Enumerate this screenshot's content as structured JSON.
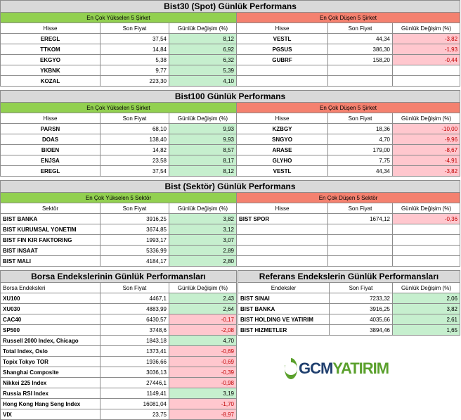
{
  "bist30": {
    "title": "Bist30 (Spot) Günlük Performans",
    "gainers_header": "En Çok Yükselen 5 Şirket",
    "losers_header": "En Çok Düşen 5 Şirket",
    "col_stock": "Hisse",
    "col_price": "Son Fiyat",
    "col_change": "Günlük Değişim (%)",
    "gainers": [
      {
        "name": "EREGL",
        "price": "37,54",
        "change": "8,12"
      },
      {
        "name": "TTKOM",
        "price": "14,84",
        "change": "6,92"
      },
      {
        "name": "EKGYO",
        "price": "5,38",
        "change": "6,32"
      },
      {
        "name": "YKBNK",
        "price": "9,77",
        "change": "5,39"
      },
      {
        "name": "KOZAL",
        "price": "223,30",
        "change": "4,10"
      }
    ],
    "losers": [
      {
        "name": "VESTL",
        "price": "44,34",
        "change": "-3,82"
      },
      {
        "name": "PGSUS",
        "price": "386,30",
        "change": "-1,93"
      },
      {
        "name": "GUBRF",
        "price": "158,20",
        "change": "-0,44"
      }
    ]
  },
  "bist100": {
    "title": "Bist100 Günlük Performans",
    "gainers_header": "En Çok Yükselen 5 Şirket",
    "losers_header": "En Çok Düşen 5 Şirket",
    "col_stock": "Hisse",
    "col_price": "Son Fiyat",
    "col_change": "Günlük Değişim (%)",
    "gainers": [
      {
        "name": "PARSN",
        "price": "68,10",
        "change": "9,93"
      },
      {
        "name": "DOAS",
        "price": "138,40",
        "change": "9,93"
      },
      {
        "name": "BIOEN",
        "price": "14,82",
        "change": "8,57"
      },
      {
        "name": "ENJSA",
        "price": "23,58",
        "change": "8,17"
      },
      {
        "name": "EREGL",
        "price": "37,54",
        "change": "8,12"
      }
    ],
    "losers": [
      {
        "name": "KZBGY",
        "price": "18,36",
        "change": "-10,00"
      },
      {
        "name": "SNGYO",
        "price": "4,70",
        "change": "-9,96"
      },
      {
        "name": "ARASE",
        "price": "179,00",
        "change": "-8,67"
      },
      {
        "name": "GLYHO",
        "price": "7,75",
        "change": "-4,91"
      },
      {
        "name": "VESTL",
        "price": "44,34",
        "change": "-3,82"
      }
    ]
  },
  "sector": {
    "title": "Bist (Sektör) Günlük Performans",
    "gainers_header": "En Çok Yükselen 5 Sektör",
    "losers_header": "En Çok Düşen 5 Sektör",
    "col_sector": "Sektör",
    "col_stock": "Hisse",
    "col_price": "Son Fiyat",
    "col_change": "Günlük Değişim (%)",
    "gainers": [
      {
        "name": "BIST BANKA",
        "price": "3916,25",
        "change": "3,82"
      },
      {
        "name": "BIST KURUMSAL YONETIM",
        "price": "3674,85",
        "change": "3,12"
      },
      {
        "name": "BIST FIN KIR FAKTORING",
        "price": "1993,17",
        "change": "3,07"
      },
      {
        "name": "BIST INSAAT",
        "price": "5336,99",
        "change": "2,89"
      },
      {
        "name": "BIST MALI",
        "price": "4184,17",
        "change": "2,80"
      }
    ],
    "losers": [
      {
        "name": "BIST SPOR",
        "price": "1674,12",
        "change": "-0,36"
      }
    ]
  },
  "borsa": {
    "title": "Borsa Endekslerinin Günlük Performansları",
    "col_index": "Borsa Endeksleri",
    "col_price": "Son Fiyat",
    "col_change": "Günlük Değişim (%)",
    "rows": [
      {
        "name": "XU100",
        "price": "4467,1",
        "change": "2,43"
      },
      {
        "name": "XU030",
        "price": "4883,99",
        "change": "2,64"
      },
      {
        "name": "CAC40",
        "price": "6430,57",
        "change": "-0,17"
      },
      {
        "name": "SP500",
        "price": "3748,6",
        "change": "-2,08"
      },
      {
        "name": "Russell 2000 Index, Chicago",
        "price": "1843,18",
        "change": "4,70"
      },
      {
        "name": "Total Index, Oslo",
        "price": "1373,41",
        "change": "-0,69"
      },
      {
        "name": "Topix Tokyo TOR",
        "price": "1936,66",
        "change": "-0,69"
      },
      {
        "name": "Shanghai Composite",
        "price": "3036,13",
        "change": "-0,39"
      },
      {
        "name": "Nikkei 225 Index",
        "price": "27446,1",
        "change": "-0,98"
      },
      {
        "name": "Russia RSI Index",
        "price": "1149,41",
        "change": "3,19"
      },
      {
        "name": "Hong Kong Hang Seng Index",
        "price": "16081,04",
        "change": "-1,70"
      },
      {
        "name": "VIX",
        "price": "23,75",
        "change": "-8,97"
      }
    ]
  },
  "referans": {
    "title": "Referans Endekslerin  Günlük Performansları",
    "col_index": "Endeksler",
    "col_price": "Son Fiyat",
    "col_change": "Günlük Değişim (%)",
    "rows": [
      {
        "name": "BIST SINAI",
        "price": "7233,32",
        "change": "2,06"
      },
      {
        "name": "BIST BANKA",
        "price": "3916,25",
        "change": "3,82"
      },
      {
        "name": "BIST HOLDING VE YATIRIM",
        "price": "4035,66",
        "change": "2,61"
      },
      {
        "name": "BIST HIZMETLER",
        "price": "3894,46",
        "change": "1,65"
      }
    ]
  },
  "logo": {
    "part1": "GCM",
    "part2": "YATIRIM"
  },
  "colors": {
    "gain_header": "#92d050",
    "loss_header": "#f4816f",
    "positive": "#c6efce",
    "negative": "#ffc7ce",
    "title_bg": "#d9d9d9"
  }
}
